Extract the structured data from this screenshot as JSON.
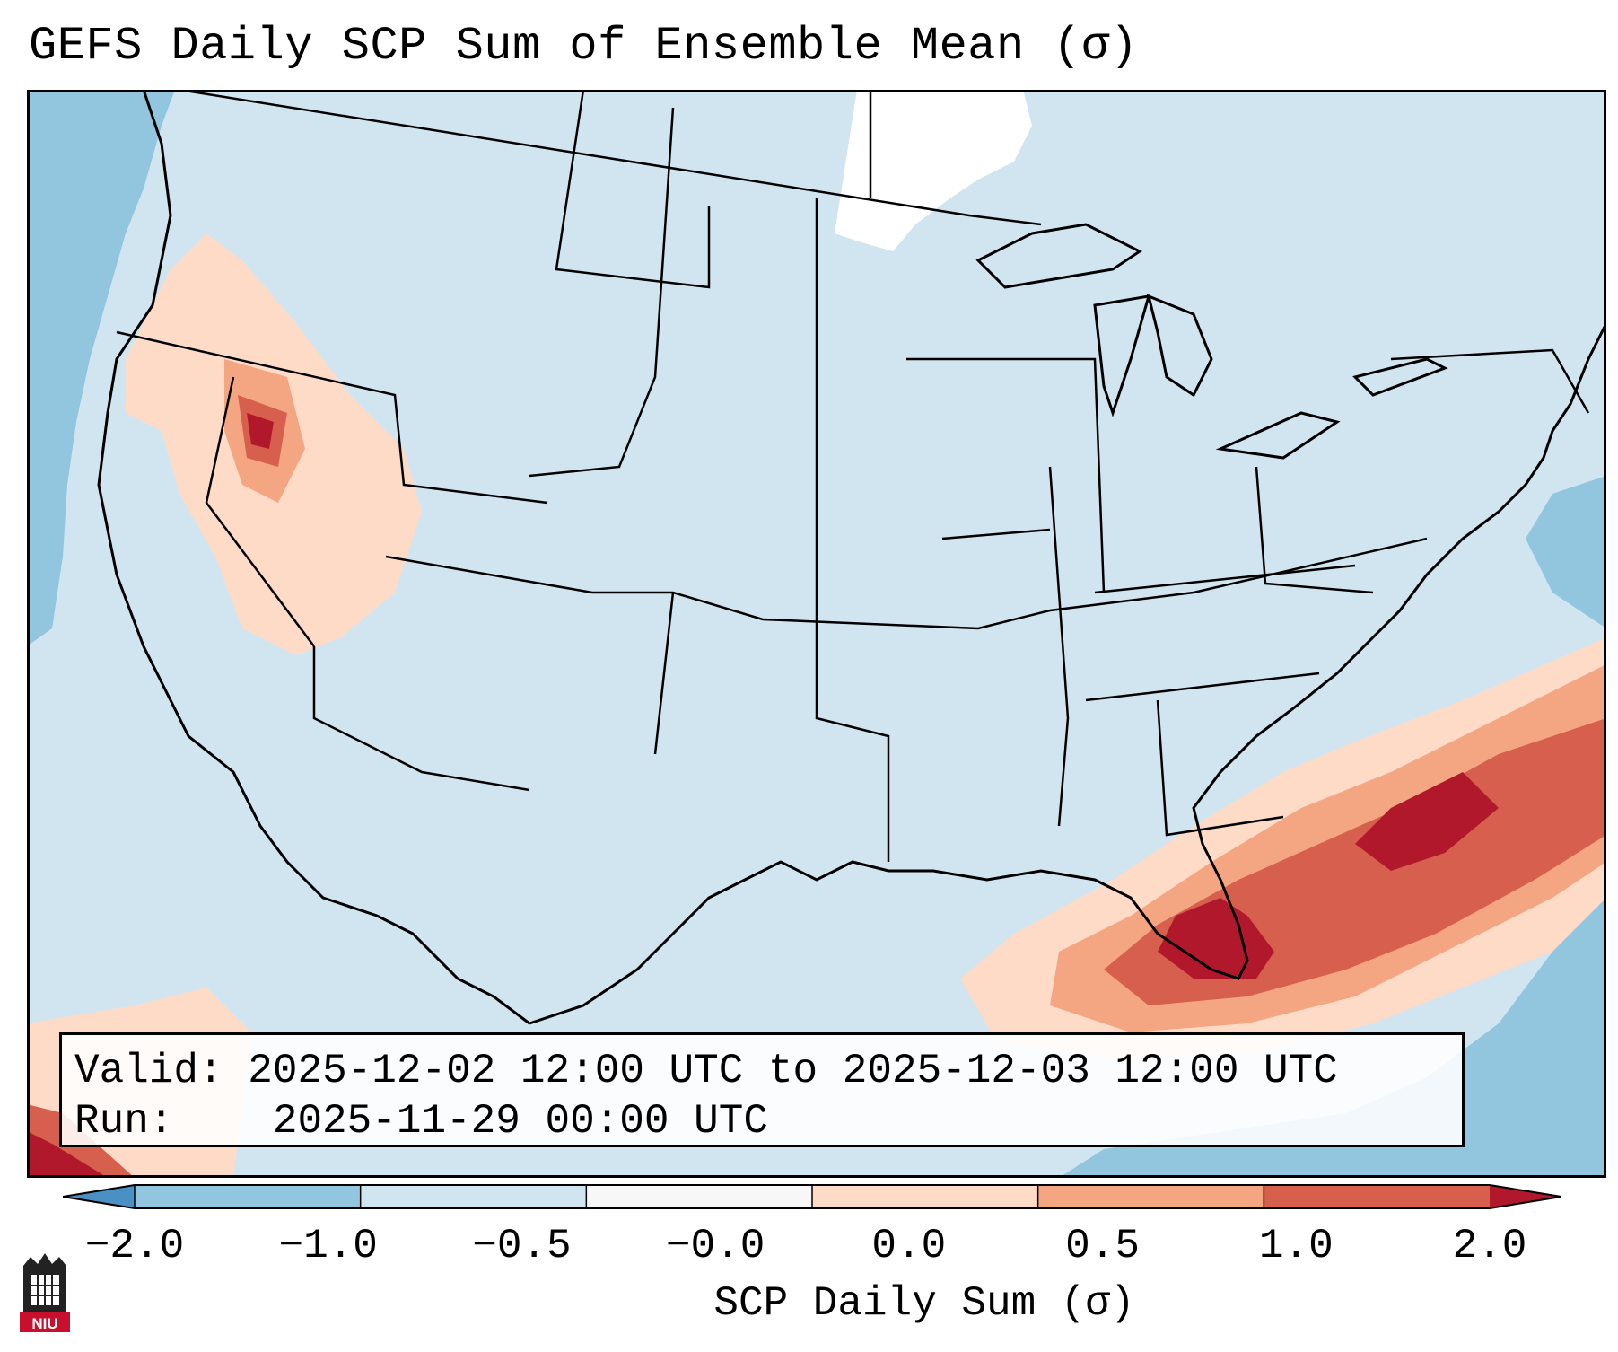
{
  "title": "GEFS Daily SCP Sum of Ensemble Mean (σ)",
  "info": {
    "valid_label": "Valid:",
    "valid_value": "2025-12-02 12:00 UTC to 2025-12-03 12:00 UTC",
    "run_label": "Run:",
    "run_value": "2025-11-29 00:00 UTC"
  },
  "colorbar": {
    "label": "SCP Daily Sum (σ)",
    "ticks": [
      "−2.0",
      "−1.0",
      "−0.5",
      "−0.0",
      "0.0",
      "0.5",
      "1.0",
      "2.0"
    ],
    "colors": [
      "#4a90c4",
      "#92c5de",
      "#d1e5f0",
      "#f7f7f7",
      "#fddbc7",
      "#f4a582",
      "#d6604d",
      "#b2182b"
    ]
  },
  "map": {
    "background_color": "#d1e5f0",
    "regions": [
      {
        "name": "pacific-northwest-offshore",
        "category": "-1.0 to -0.5"
      },
      {
        "name": "oregon-idaho-nevada",
        "category": "0.0 to 2.0"
      },
      {
        "name": "southeast-florida-atlantic",
        "category": "0.5 to 2.0+"
      },
      {
        "name": "canada-north",
        "category": "-0.0 to 0.0"
      },
      {
        "name": "caribbean-gulf",
        "category": "-1.0 to -0.5"
      }
    ]
  },
  "logo": {
    "text": "NIU"
  }
}
